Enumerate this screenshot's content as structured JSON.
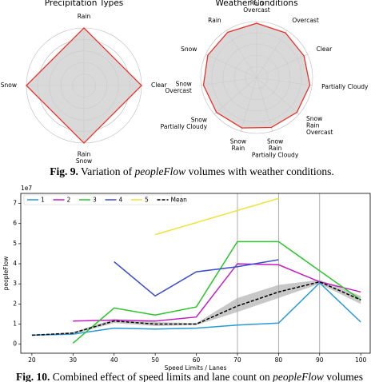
{
  "chart_data": [
    {
      "type": "radar",
      "title": "Precipitation Types",
      "categories": [
        [
          "Rain"
        ],
        [
          "Clear"
        ],
        [
          "Rain",
          "Snow"
        ],
        [
          "Snow"
        ]
      ],
      "values": [
        1,
        1,
        1,
        1
      ],
      "rlim": [
        0,
        1
      ],
      "rticks": [
        0.2,
        0.4,
        0.6,
        0.8,
        1
      ],
      "color": "#e8312a",
      "fill": "#d0d0d0"
    },
    {
      "type": "radar",
      "title": "Weather Conditions",
      "categories": [
        [
          "Rain",
          "Overcast"
        ],
        [
          "Overcast"
        ],
        [
          "Clear"
        ],
        [
          "Partially Cloudy"
        ],
        [
          "Snow",
          "Rain",
          "Overcast"
        ],
        [
          "Snow",
          "Rain",
          "Partially Cloudy"
        ],
        [
          "Snow",
          "Rain"
        ],
        [
          "Snow",
          "Partially Cloudy"
        ],
        [
          "Snow",
          "Overcast"
        ],
        [
          "Snow"
        ],
        [
          "Rain"
        ]
      ],
      "values": [
        0.97,
        0.95,
        0.93,
        0.96,
        0.95,
        0.93,
        0.94,
        0.95,
        0.96,
        0.96,
        0.96
      ],
      "rlim": [
        0,
        1
      ],
      "rticks": [
        0.2,
        0.4,
        0.6,
        0.8,
        1
      ],
      "color": "#e8312a",
      "fill": "#d0d0d0"
    },
    {
      "type": "line",
      "xlabel": "Speed Limits / Lanes",
      "ylabel": "peopleFlow",
      "offset_label": "1e7",
      "xlim": [
        17.3,
        102.3
      ],
      "ylim": [
        -0.45,
        7.5
      ],
      "xticks": [
        20,
        30,
        40,
        50,
        60,
        70,
        80,
        90,
        100
      ],
      "yticks": [
        0,
        1,
        2,
        3,
        4,
        5,
        6,
        7
      ],
      "vlines": [
        70,
        80,
        90
      ],
      "legend": "upper left",
      "series": [
        {
          "name": "1",
          "color": "#2a9ad6",
          "x": [
            20,
            30,
            40,
            50,
            60,
            70,
            80,
            90,
            100
          ],
          "values": [
            0.45,
            0.5,
            0.8,
            0.75,
            0.8,
            0.95,
            1.05,
            3.05,
            1.1
          ]
        },
        {
          "name": "2",
          "color": "#c21fc2",
          "x": [
            30,
            40,
            50,
            60,
            70,
            80,
            90,
            100
          ],
          "values": [
            1.15,
            1.2,
            1.15,
            1.35,
            4.0,
            3.95,
            3.1,
            2.6
          ]
        },
        {
          "name": "3",
          "color": "#2bc42b",
          "x": [
            30,
            40,
            50,
            60,
            70,
            80,
            100
          ],
          "values": [
            0.05,
            1.8,
            1.45,
            1.85,
            5.1,
            5.1,
            2.2
          ]
        },
        {
          "name": "4",
          "color": "#3b4fcf",
          "x": [
            40,
            50,
            60,
            70,
            80
          ],
          "values": [
            4.1,
            2.4,
            3.6,
            3.85,
            4.2
          ]
        },
        {
          "name": "5",
          "color": "#eee23a",
          "x": [
            50,
            80
          ],
          "values": [
            5.45,
            7.25
          ]
        },
        {
          "name": "Mean",
          "color": "#000000",
          "dashed": true,
          "x": [
            20,
            30,
            40,
            50,
            60,
            70,
            80,
            90,
            100
          ],
          "values": [
            0.45,
            0.55,
            1.15,
            1.0,
            1.0,
            1.9,
            2.6,
            3.1,
            2.2
          ],
          "band_low": [
            0.45,
            0.5,
            1.05,
            0.9,
            0.95,
            1.6,
            2.3,
            3.0,
            2.0
          ],
          "band_high": [
            0.45,
            0.6,
            1.25,
            1.1,
            1.05,
            2.3,
            2.95,
            3.2,
            2.4
          ],
          "band_color": "#b0b0b0"
        }
      ]
    }
  ],
  "captions": [
    {
      "label": "Fig. 9.",
      "parts": [
        "Variation of ",
        "peopleFlow",
        " volumes with weather conditions."
      ]
    },
    {
      "label": "Fig. 10.",
      "parts": [
        "Combined effect of speed limits and lane count on ",
        "peopleFlow",
        " volumes"
      ]
    }
  ]
}
